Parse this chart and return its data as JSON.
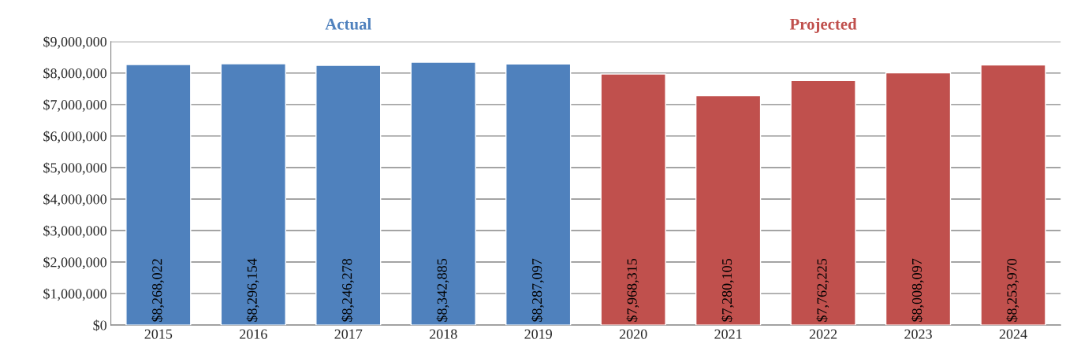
{
  "chart_data": {
    "type": "bar",
    "categories": [
      "2015",
      "2016",
      "2017",
      "2018",
      "2019",
      "2020",
      "2021",
      "2022",
      "2023",
      "2024"
    ],
    "series": [
      {
        "name": "Actual",
        "color": "#4f81bd",
        "values": [
          8268022,
          8296154,
          8246278,
          8342885,
          8287097,
          null,
          null,
          null,
          null,
          null
        ],
        "value_labels": [
          "$8,268,022",
          "$8,296,154",
          "$8,246,278",
          "$8,342,885",
          "$8,287,097",
          null,
          null,
          null,
          null,
          null
        ]
      },
      {
        "name": "Projected",
        "color": "#c0504d",
        "values": [
          null,
          null,
          null,
          null,
          null,
          7968315,
          7280105,
          7762225,
          8008097,
          8253970
        ],
        "value_labels": [
          null,
          null,
          null,
          null,
          null,
          "$7,968,315",
          "$7,280,105",
          "$7,762,225",
          "$8,008,097",
          "$8,253,970"
        ]
      }
    ],
    "ylim": [
      0,
      9000000
    ],
    "yticks": [
      {
        "value": 0,
        "label": "$0"
      },
      {
        "value": 1000000,
        "label": "$1,000,000"
      },
      {
        "value": 2000000,
        "label": "$2,000,000"
      },
      {
        "value": 3000000,
        "label": "$3,000,000"
      },
      {
        "value": 4000000,
        "label": "$4,000,000"
      },
      {
        "value": 5000000,
        "label": "$5,000,000"
      },
      {
        "value": 6000000,
        "label": "$6,000,000"
      },
      {
        "value": 7000000,
        "label": "$7,000,000"
      },
      {
        "value": 8000000,
        "label": "$8,000,000"
      },
      {
        "value": 9000000,
        "label": "$9,000,000"
      }
    ],
    "grid": "y"
  }
}
